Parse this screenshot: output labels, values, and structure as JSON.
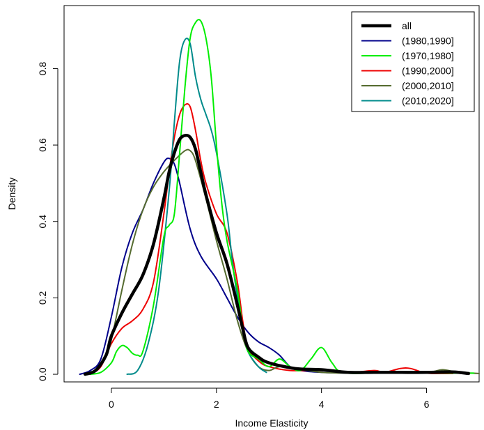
{
  "chart_data": {
    "type": "line",
    "title": "",
    "xlabel": "Income Elasticity",
    "ylabel": "Density",
    "xlim": [
      -0.9,
      7.0
    ],
    "ylim": [
      -0.02,
      0.965
    ],
    "x_ticks": [
      0,
      2,
      4,
      6
    ],
    "y_ticks": [
      0.0,
      0.2,
      0.4,
      0.6,
      0.8
    ],
    "x_tick_labels": [
      "0",
      "2",
      "4",
      "6"
    ],
    "y_tick_labels": [
      "0.0",
      "0.2",
      "0.4",
      "0.6",
      "0.8"
    ],
    "grid": false,
    "legend_position": "top-right",
    "series": [
      {
        "name": "all",
        "color": "#000000",
        "width": 4.5,
        "points": [
          [
            -0.5,
            0
          ],
          [
            -0.3,
            0.01
          ],
          [
            -0.1,
            0.05
          ],
          [
            0.0,
            0.1
          ],
          [
            0.2,
            0.16
          ],
          [
            0.4,
            0.21
          ],
          [
            0.6,
            0.26
          ],
          [
            0.8,
            0.34
          ],
          [
            1.0,
            0.46
          ],
          [
            1.1,
            0.53
          ],
          [
            1.2,
            0.58
          ],
          [
            1.3,
            0.615
          ],
          [
            1.4,
            0.625
          ],
          [
            1.5,
            0.62
          ],
          [
            1.6,
            0.59
          ],
          [
            1.7,
            0.53
          ],
          [
            1.8,
            0.47
          ],
          [
            2.0,
            0.37
          ],
          [
            2.2,
            0.29
          ],
          [
            2.4,
            0.18
          ],
          [
            2.5,
            0.12
          ],
          [
            2.6,
            0.07
          ],
          [
            2.8,
            0.045
          ],
          [
            3.0,
            0.03
          ],
          [
            3.5,
            0.015
          ],
          [
            4.0,
            0.012
          ],
          [
            4.5,
            0.005
          ],
          [
            5.0,
            0.005
          ],
          [
            5.5,
            0.005
          ],
          [
            6.0,
            0.005
          ],
          [
            6.5,
            0.006
          ],
          [
            6.8,
            0.002
          ]
        ]
      },
      {
        "name": "(1980,1990]",
        "color": "#00008B",
        "width": 2,
        "points": [
          [
            -0.6,
            0
          ],
          [
            -0.4,
            0.01
          ],
          [
            -0.2,
            0.04
          ],
          [
            0.0,
            0.15
          ],
          [
            0.2,
            0.28
          ],
          [
            0.4,
            0.37
          ],
          [
            0.6,
            0.43
          ],
          [
            0.8,
            0.5
          ],
          [
            1.0,
            0.555
          ],
          [
            1.1,
            0.565
          ],
          [
            1.2,
            0.55
          ],
          [
            1.3,
            0.5
          ],
          [
            1.5,
            0.38
          ],
          [
            1.7,
            0.31
          ],
          [
            2.0,
            0.25
          ],
          [
            2.2,
            0.2
          ],
          [
            2.4,
            0.15
          ],
          [
            2.6,
            0.11
          ],
          [
            2.8,
            0.085
          ],
          [
            3.0,
            0.07
          ],
          [
            3.2,
            0.05
          ],
          [
            3.4,
            0.02
          ],
          [
            3.6,
            0.01
          ],
          [
            4.0,
            0.005
          ],
          [
            4.5,
            0.003
          ],
          [
            5.0,
            0.003
          ]
        ]
      },
      {
        "name": "(1970,1980]",
        "color": "#00EE00",
        "width": 2,
        "points": [
          [
            -0.4,
            0
          ],
          [
            -0.2,
            0.005
          ],
          [
            0.0,
            0.03
          ],
          [
            0.1,
            0.06
          ],
          [
            0.2,
            0.075
          ],
          [
            0.3,
            0.07
          ],
          [
            0.4,
            0.055
          ],
          [
            0.5,
            0.05
          ],
          [
            0.6,
            0.06
          ],
          [
            0.8,
            0.18
          ],
          [
            1.0,
            0.36
          ],
          [
            1.1,
            0.39
          ],
          [
            1.2,
            0.42
          ],
          [
            1.3,
            0.58
          ],
          [
            1.4,
            0.75
          ],
          [
            1.5,
            0.88
          ],
          [
            1.6,
            0.92
          ],
          [
            1.7,
            0.925
          ],
          [
            1.8,
            0.88
          ],
          [
            1.9,
            0.78
          ],
          [
            2.0,
            0.6
          ],
          [
            2.1,
            0.45
          ],
          [
            2.2,
            0.35
          ],
          [
            2.4,
            0.22
          ],
          [
            2.5,
            0.12
          ],
          [
            2.6,
            0.06
          ],
          [
            2.8,
            0.04
          ],
          [
            3.0,
            0.02
          ],
          [
            3.2,
            0.04
          ],
          [
            3.4,
            0.02
          ],
          [
            3.6,
            0.01
          ],
          [
            3.8,
            0.04
          ],
          [
            4.0,
            0.07
          ],
          [
            4.2,
            0.03
          ],
          [
            4.4,
            0.005
          ],
          [
            5.0,
            0.003
          ],
          [
            6.0,
            0.003
          ],
          [
            6.9,
            0.003
          ]
        ]
      },
      {
        "name": "(1990,2000]",
        "color": "#EE0000",
        "width": 2,
        "points": [
          [
            -0.4,
            0
          ],
          [
            -0.2,
            0.02
          ],
          [
            0.0,
            0.08
          ],
          [
            0.2,
            0.12
          ],
          [
            0.4,
            0.14
          ],
          [
            0.6,
            0.17
          ],
          [
            0.8,
            0.24
          ],
          [
            1.0,
            0.42
          ],
          [
            1.1,
            0.53
          ],
          [
            1.2,
            0.62
          ],
          [
            1.3,
            0.68
          ],
          [
            1.4,
            0.705
          ],
          [
            1.5,
            0.7
          ],
          [
            1.6,
            0.64
          ],
          [
            1.7,
            0.56
          ],
          [
            1.8,
            0.5
          ],
          [
            2.0,
            0.42
          ],
          [
            2.2,
            0.37
          ],
          [
            2.4,
            0.24
          ],
          [
            2.5,
            0.14
          ],
          [
            2.6,
            0.07
          ],
          [
            2.8,
            0.035
          ],
          [
            3.0,
            0.02
          ],
          [
            3.4,
            0.01
          ],
          [
            4.0,
            0.01
          ],
          [
            4.5,
            0.004
          ],
          [
            5.0,
            0.01
          ],
          [
            5.2,
            0.005
          ],
          [
            5.5,
            0.015
          ],
          [
            5.7,
            0.015
          ],
          [
            6.0,
            0.003
          ],
          [
            6.5,
            0.002
          ]
        ]
      },
      {
        "name": "(2000,2010]",
        "color": "#556B2F",
        "width": 2,
        "points": [
          [
            -0.5,
            0
          ],
          [
            -0.3,
            0.01
          ],
          [
            -0.1,
            0.05
          ],
          [
            0.0,
            0.09
          ],
          [
            0.2,
            0.22
          ],
          [
            0.4,
            0.34
          ],
          [
            0.6,
            0.43
          ],
          [
            0.8,
            0.49
          ],
          [
            1.0,
            0.53
          ],
          [
            1.2,
            0.56
          ],
          [
            1.4,
            0.585
          ],
          [
            1.5,
            0.585
          ],
          [
            1.6,
            0.56
          ],
          [
            1.8,
            0.46
          ],
          [
            2.0,
            0.35
          ],
          [
            2.2,
            0.25
          ],
          [
            2.4,
            0.14
          ],
          [
            2.6,
            0.06
          ],
          [
            2.8,
            0.02
          ],
          [
            3.0,
            0.01
          ],
          [
            3.2,
            0.02
          ],
          [
            3.5,
            0.015
          ],
          [
            4.0,
            0.005
          ],
          [
            4.5,
            0.003
          ],
          [
            5.0,
            0.003
          ],
          [
            6.0,
            0.005
          ],
          [
            6.3,
            0.012
          ],
          [
            6.6,
            0.005
          ],
          [
            7.0,
            0.002
          ]
        ]
      },
      {
        "name": "(2010,2020]",
        "color": "#008B8B",
        "width": 2,
        "points": [
          [
            0.3,
            0
          ],
          [
            0.5,
            0.01
          ],
          [
            0.7,
            0.08
          ],
          [
            0.9,
            0.22
          ],
          [
            1.1,
            0.48
          ],
          [
            1.2,
            0.66
          ],
          [
            1.3,
            0.82
          ],
          [
            1.4,
            0.875
          ],
          [
            1.5,
            0.865
          ],
          [
            1.6,
            0.78
          ],
          [
            1.7,
            0.72
          ],
          [
            1.8,
            0.68
          ],
          [
            1.9,
            0.64
          ],
          [
            2.0,
            0.58
          ],
          [
            2.2,
            0.42
          ],
          [
            2.3,
            0.3
          ],
          [
            2.4,
            0.2
          ],
          [
            2.5,
            0.12
          ],
          [
            2.6,
            0.06
          ],
          [
            2.8,
            0.02
          ],
          [
            2.95,
            0.005
          ]
        ]
      }
    ]
  }
}
